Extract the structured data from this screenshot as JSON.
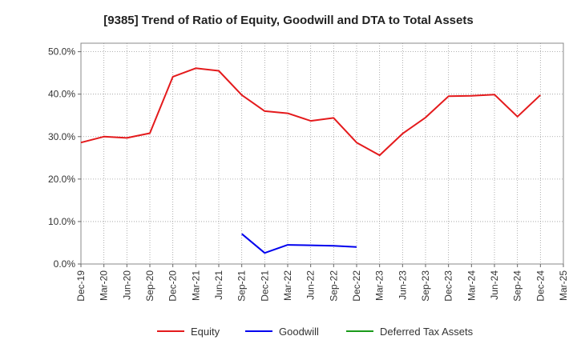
{
  "chart_data": {
    "type": "line",
    "title": "[9385]  Trend of Ratio of Equity, Goodwill and DTA to Total Assets",
    "xlabel": "",
    "ylabel": "",
    "ylim": [
      0,
      0.52
    ],
    "yticks": [
      0,
      0.1,
      0.2,
      0.3,
      0.4,
      0.5
    ],
    "ytick_labels": [
      "0.0%",
      "10.0%",
      "20.0%",
      "30.0%",
      "40.0%",
      "50.0%"
    ],
    "categories": [
      "Dec-19",
      "Mar-20",
      "Jun-20",
      "Sep-20",
      "Dec-20",
      "Mar-21",
      "Jun-21",
      "Sep-21",
      "Dec-21",
      "Mar-22",
      "Jun-22",
      "Sep-22",
      "Dec-22",
      "Mar-23",
      "Jun-23",
      "Sep-23",
      "Dec-23",
      "Mar-24",
      "Jun-24",
      "Sep-24",
      "Dec-24",
      "Mar-25"
    ],
    "grid": true,
    "legend_position": "bottom",
    "series": [
      {
        "name": "Equity",
        "color": "#e41a1c",
        "values": [
          0.286,
          0.3,
          0.297,
          0.308,
          0.441,
          0.461,
          0.455,
          0.398,
          0.36,
          0.355,
          0.337,
          0.344,
          0.286,
          0.256,
          0.307,
          0.345,
          0.395,
          0.396,
          0.399,
          0.347,
          0.398,
          null
        ]
      },
      {
        "name": "Goodwill",
        "color": "#0000ee",
        "values": [
          null,
          null,
          null,
          null,
          null,
          null,
          null,
          0.071,
          0.026,
          0.045,
          0.044,
          0.043,
          0.04,
          null,
          null,
          null,
          null,
          null,
          null,
          null,
          null,
          null
        ]
      },
      {
        "name": "Deferred Tax Assets",
        "color": "#1a9a1a",
        "values": [
          null,
          null,
          null,
          null,
          null,
          null,
          null,
          null,
          null,
          null,
          null,
          null,
          null,
          null,
          null,
          null,
          null,
          null,
          null,
          null,
          null,
          null
        ]
      }
    ]
  }
}
